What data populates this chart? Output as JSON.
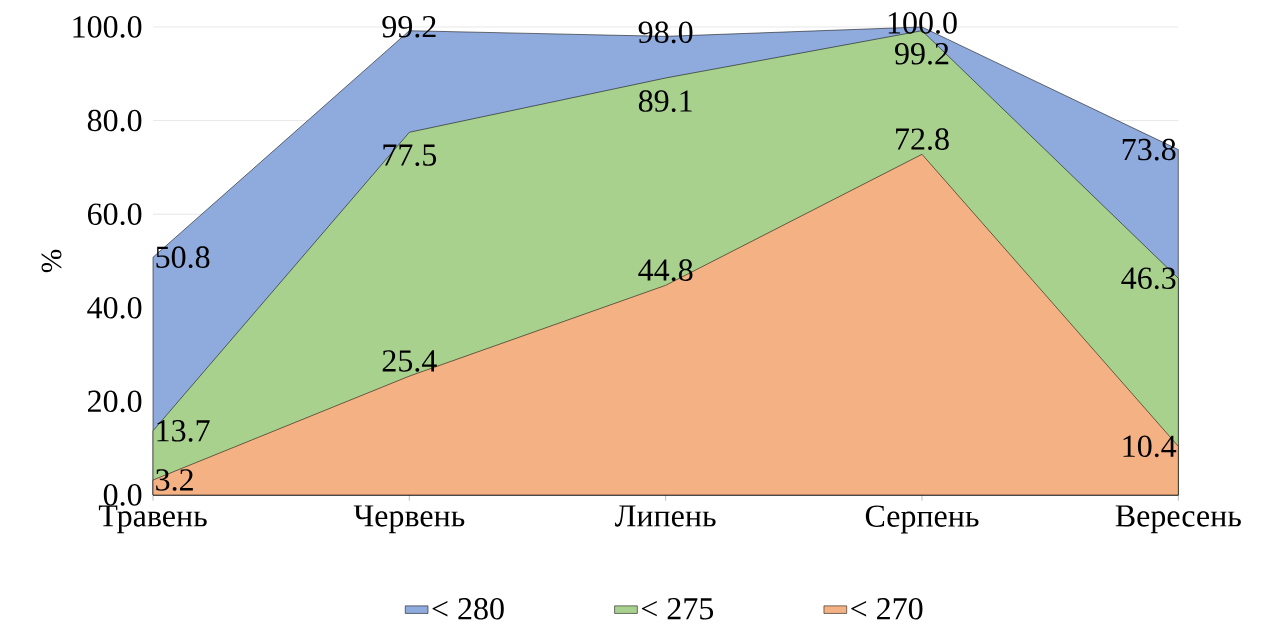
{
  "chart_data": {
    "type": "area",
    "ylabel": "%",
    "categories": [
      "Травень",
      "Червень",
      "Липень",
      "Серпень",
      "Вересень"
    ],
    "series": [
      {
        "name": "< 280",
        "color": "#8faadc",
        "values": [
          50.8,
          99.2,
          98.0,
          100.0,
          73.8
        ],
        "value_labels": [
          "50.8",
          "99.2",
          "98.0",
          "100.0",
          "73.8"
        ]
      },
      {
        "name": "< 275",
        "color": "#a9d18e",
        "values": [
          13.7,
          77.5,
          89.1,
          99.2,
          46.3
        ],
        "value_labels": [
          "13.7",
          "77.5",
          "89.1",
          "99.2",
          "46.3"
        ]
      },
      {
        "name": "< 270",
        "color": "#f4b183",
        "values": [
          3.2,
          25.4,
          44.8,
          72.8,
          10.4
        ],
        "value_labels": [
          "3.2",
          "25.4",
          "44.8",
          "72.8",
          "10.4"
        ]
      }
    ],
    "ylim": [
      0,
      100
    ],
    "yticks": [
      {
        "value": 0,
        "label": "0.0"
      },
      {
        "value": 20,
        "label": "20.0"
      },
      {
        "value": 40,
        "label": "40.0"
      },
      {
        "value": 60,
        "label": "60.0"
      },
      {
        "value": 80,
        "label": "80.0"
      },
      {
        "value": 100,
        "label": "100.0"
      }
    ],
    "grid": "y",
    "legend": "bottom"
  }
}
